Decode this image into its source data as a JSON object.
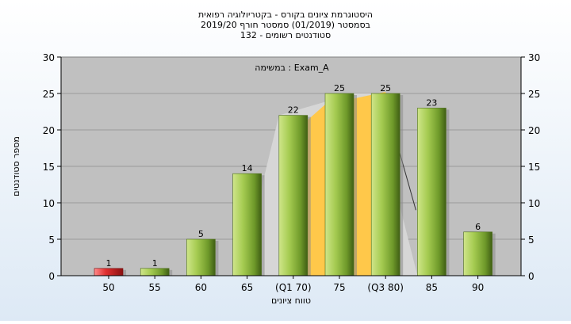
{
  "chart_data": {
    "type": "bar",
    "title_lines": [
      "היסטוגרמת ציונים בקורס - בקטריולוגיה רפואית",
      "בסמסטר  (01/2019)  סמסטר חורף 2019/20",
      "סטודנטים רשומים - 132"
    ],
    "annotation": "במשימה : Exam_A",
    "xlabel": "טווח ציונים",
    "ylabel": "מספר סטודנטים",
    "categories": [
      "50",
      "55",
      "60",
      "65",
      "(Q1 70)",
      "75",
      "(Q3 80)",
      "85",
      "90"
    ],
    "values": [
      1,
      1,
      5,
      14,
      22,
      25,
      25,
      23,
      6
    ],
    "bar_colors": [
      "#e03030",
      "#8fba3c",
      "#8fba3c",
      "#8fba3c",
      "#8fba3c",
      "#8fba3c",
      "#8fba3c",
      "#8fba3c",
      "#8fba3c"
    ],
    "ylim": [
      0,
      30
    ],
    "yticks": [
      0,
      5,
      10,
      15,
      20,
      25,
      30
    ],
    "grid": true,
    "plot_background": "#c0c0c0",
    "highlight_area_color": "#ffc84a",
    "shadow_area_color": "#d6d6d6"
  }
}
